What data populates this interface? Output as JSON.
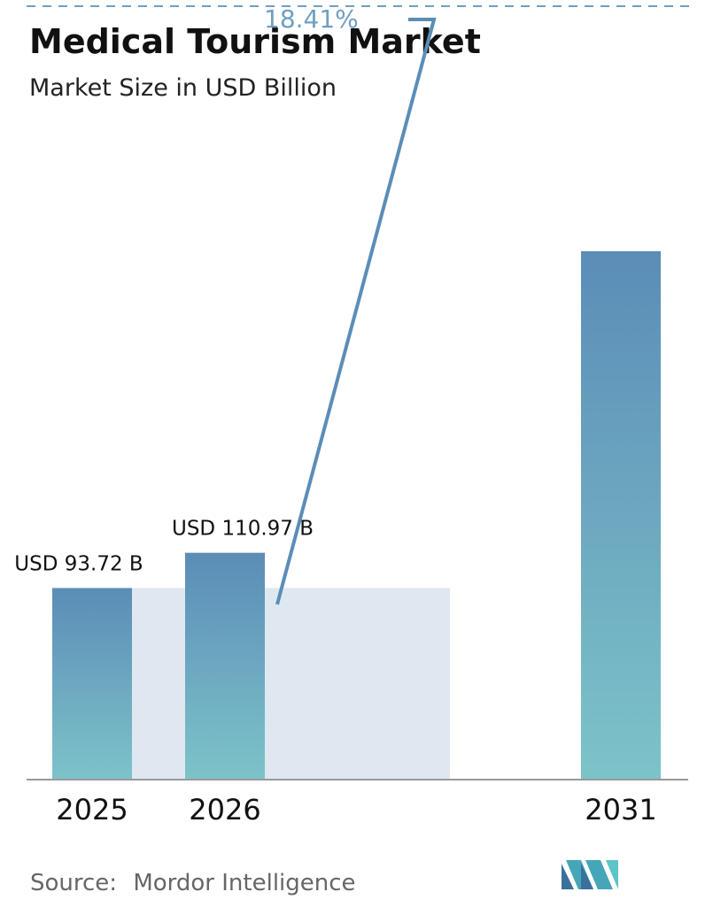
{
  "chart_data": {
    "type": "bar",
    "title": "Medical Tourism Market",
    "subtitle": "Market Size in USD Billion",
    "categories": [
      "2025",
      "2026",
      "2031"
    ],
    "values": [
      93.72,
      110.97,
      258.5
    ],
    "data_labels": [
      "USD 93.72 B",
      "USD 110.97 B",
      ""
    ],
    "cagr_label": "18.41%",
    "ylim": [
      0,
      300
    ],
    "grid": false,
    "legend": "none",
    "colors": {
      "bar_top": "#5b8db7",
      "bar_bottom": "#7dc3c9",
      "band": "#dfe8f1",
      "arrow": "#5b8db7",
      "cagr_text": "#6f9fc0",
      "axis": "#999999",
      "dashed": "#6f9fc0"
    }
  },
  "footer": {
    "source_label": "Source:",
    "source_name": "Mordor Intelligence"
  },
  "logo": {
    "icon": "mordor-intelligence-logo-icon"
  }
}
